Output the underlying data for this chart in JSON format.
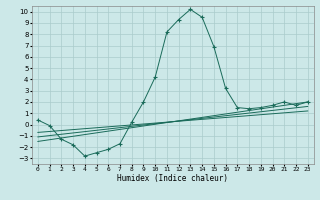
{
  "xlabel": "Humidex (Indice chaleur)",
  "x_labels": [
    "0",
    "1",
    "2",
    "3",
    "4",
    "5",
    "6",
    "7",
    "8",
    "9",
    "10",
    "11",
    "12",
    "13",
    "14",
    "15",
    "16",
    "17",
    "18",
    "19",
    "20",
    "21",
    "22",
    "23"
  ],
  "xlim": [
    -0.5,
    23.5
  ],
  "ylim": [
    -3.5,
    10.5
  ],
  "yticks": [
    -3,
    -2,
    -1,
    0,
    1,
    2,
    3,
    4,
    5,
    6,
    7,
    8,
    9,
    10
  ],
  "bg_color": "#cce8e8",
  "grid_color": "#aacccc",
  "line_color": "#1a6b5a",
  "main_x": [
    0,
    1,
    2,
    3,
    4,
    5,
    6,
    7,
    8,
    9,
    10,
    11,
    12,
    13,
    14,
    15,
    16,
    17,
    18,
    19,
    20,
    21,
    22,
    23
  ],
  "main_y": [
    0.4,
    -0.1,
    -1.3,
    -1.8,
    -2.8,
    -2.5,
    -2.2,
    -1.7,
    0.2,
    2.0,
    4.2,
    8.2,
    9.3,
    10.2,
    9.5,
    6.9,
    3.2,
    1.5,
    1.4,
    1.5,
    1.7,
    2.0,
    1.7,
    2.0
  ],
  "line2_x": [
    0,
    23
  ],
  "line2_y": [
    -1.5,
    2.0
  ],
  "line3_x": [
    0,
    23
  ],
  "line3_y": [
    -1.1,
    1.6
  ],
  "line4_x": [
    0,
    23
  ],
  "line4_y": [
    -0.7,
    1.2
  ]
}
